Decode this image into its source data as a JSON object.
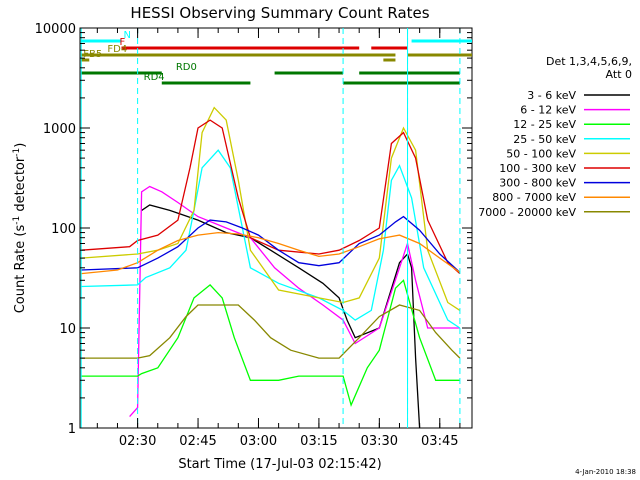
{
  "chart_data": {
    "type": "line",
    "title": "HESSI Observing Summary Count Rates",
    "xlabel": "Start Time (17-Jul-03 02:15:42)",
    "ylabel": "Count Rate (s",
    "ylabel_exp": "-1",
    "ylabel_tail": " detector",
    "ylabel_exp2": "-1",
    "ylabel_close": ")",
    "yscale": "log",
    "ylim": [
      1,
      10000
    ],
    "xlim": [
      "02:15:42",
      "03:53:00"
    ],
    "y_ticks": [
      1,
      10,
      100,
      1000,
      10000
    ],
    "y_tick_labels": [
      "1",
      "10",
      "100",
      "1000",
      "10000"
    ],
    "x_ticks": [
      "02:30",
      "02:45",
      "03:00",
      "03:15",
      "03:30",
      "03:45"
    ],
    "grid": false,
    "legend": {
      "position": "right",
      "header": "Det 1,3,4,5,6,9,",
      "header2": "Att 0"
    },
    "series": [
      {
        "name": "3 - 6 keV",
        "color": "#000000",
        "x": [
          "02:16",
          "02:29",
          "02:31",
          "02:33",
          "02:38",
          "02:45",
          "02:52",
          "02:58",
          "03:03",
          "03:10",
          "03:16",
          "03:20",
          "03:22",
          "03:24",
          "03:30",
          "03:35",
          "03:37",
          "03:38",
          "03:39",
          "03:40"
        ],
        "y": [
          null,
          null,
          150,
          170,
          150,
          120,
          90,
          80,
          60,
          40,
          28,
          20,
          12,
          8,
          10,
          45,
          55,
          40,
          5,
          1
        ]
      },
      {
        "name": "6 - 12 keV",
        "color": "#ff00ff",
        "x": [
          "02:16",
          "02:28",
          "02:30",
          "02:31",
          "02:33",
          "02:36",
          "02:40",
          "02:45",
          "02:52",
          "02:58",
          "03:04",
          "03:10",
          "03:16",
          "03:21",
          "03:24",
          "03:30",
          "03:35",
          "03:37",
          "03:39",
          "03:42",
          "03:50"
        ],
        "y": [
          null,
          1.3,
          1.6,
          230,
          260,
          230,
          180,
          130,
          100,
          80,
          40,
          25,
          17,
          12,
          7,
          10,
          40,
          70,
          30,
          10,
          10
        ]
      },
      {
        "name": "12 - 25 keV",
        "color": "#00ff00",
        "x": [
          "02:16",
          "02:30",
          "02:31",
          "02:35",
          "02:40",
          "02:44",
          "02:48",
          "02:51",
          "02:54",
          "02:58",
          "03:05",
          "03:10",
          "03:16",
          "03:21",
          "03:23",
          "03:27",
          "03:30",
          "03:34",
          "03:36",
          "03:40",
          "03:44",
          "03:50"
        ],
        "y": [
          3.3,
          3.3,
          3.5,
          4,
          8,
          20,
          27,
          20,
          8,
          3,
          3,
          3.3,
          3.3,
          3.3,
          1.7,
          4,
          6,
          25,
          30,
          8,
          3,
          3
        ]
      },
      {
        "name": "25 - 50 keV",
        "color": "#00ffff",
        "x": [
          "02:16",
          "02:30",
          "02:32",
          "02:38",
          "02:42",
          "02:44",
          "02:46",
          "02:50",
          "02:53",
          "02:56",
          "02:58",
          "03:05",
          "03:15",
          "03:21",
          "03:24",
          "03:28",
          "03:31",
          "03:33",
          "03:35",
          "03:38",
          "03:41",
          "03:47",
          "03:50"
        ],
        "y": [
          26,
          27,
          32,
          40,
          60,
          150,
          400,
          600,
          400,
          100,
          40,
          28,
          20,
          15,
          12,
          15,
          60,
          300,
          420,
          200,
          40,
          12,
          10
        ]
      },
      {
        "name": "50 - 100 keV",
        "color": "#cccc00",
        "x": [
          "02:16",
          "02:30",
          "02:35",
          "02:40",
          "02:44",
          "02:46",
          "02:49",
          "02:52",
          "02:55",
          "02:58",
          "03:05",
          "03:15",
          "03:21",
          "03:25",
          "03:30",
          "03:33",
          "03:36",
          "03:39",
          "03:42",
          "03:47",
          "03:50"
        ],
        "y": [
          50,
          55,
          60,
          70,
          150,
          900,
          1600,
          1200,
          300,
          60,
          24,
          20,
          18,
          20,
          50,
          500,
          1000,
          600,
          60,
          18,
          15
        ]
      },
      {
        "name": "100 - 300 keV",
        "color": "#dd0000",
        "x": [
          "02:16",
          "02:28",
          "02:30",
          "02:35",
          "02:40",
          "02:43",
          "02:45",
          "02:48",
          "02:51",
          "02:55",
          "02:58",
          "03:05",
          "03:15",
          "03:20",
          "03:25",
          "03:30",
          "03:33",
          "03:36",
          "03:39",
          "03:42",
          "03:47",
          "03:50"
        ],
        "y": [
          60,
          65,
          75,
          85,
          120,
          400,
          1000,
          1200,
          1000,
          200,
          80,
          60,
          55,
          60,
          75,
          100,
          700,
          900,
          500,
          120,
          45,
          35
        ]
      },
      {
        "name": "300 - 800 keV",
        "color": "#0000dd",
        "x": [
          "02:16",
          "02:30",
          "02:35",
          "02:40",
          "02:45",
          "02:48",
          "02:52",
          "02:56",
          "03:00",
          "03:05",
          "03:10",
          "03:15",
          "03:20",
          "03:25",
          "03:30",
          "03:34",
          "03:36",
          "03:40",
          "03:45",
          "03:50"
        ],
        "y": [
          38,
          40,
          50,
          65,
          100,
          120,
          115,
          100,
          85,
          60,
          45,
          42,
          45,
          70,
          85,
          115,
          130,
          95,
          55,
          36
        ]
      },
      {
        "name": "800 - 7000 keV",
        "color": "#ff8800",
        "x": [
          "02:16",
          "02:25",
          "02:30",
          "02:35",
          "02:40",
          "02:45",
          "02:50",
          "02:55",
          "03:00",
          "03:05",
          "03:10",
          "03:15",
          "03:20",
          "03:25",
          "03:30",
          "03:35",
          "03:40",
          "03:45",
          "03:50"
        ],
        "y": [
          35,
          38,
          45,
          60,
          75,
          85,
          90,
          87,
          80,
          70,
          60,
          52,
          55,
          65,
          78,
          85,
          70,
          50,
          36
        ]
      },
      {
        "name": "7000 - 20000 keV",
        "color": "#888800",
        "x": [
          "02:16",
          "02:25",
          "02:30",
          "02:33",
          "02:38",
          "02:42",
          "02:45",
          "02:50",
          "02:55",
          "02:59",
          "03:03",
          "03:08",
          "03:15",
          "03:20",
          "03:25",
          "03:30",
          "03:35",
          "03:40",
          "03:44",
          "03:48",
          "03:50"
        ],
        "y": [
          5,
          5,
          5,
          5.3,
          8,
          13,
          17,
          17,
          17,
          12,
          8,
          6,
          5,
          5,
          8,
          13,
          17,
          15,
          9,
          6,
          5
        ]
      }
    ],
    "state_bars": [
      {
        "label": "N",
        "color": "#00ffff",
        "label_at": "02:26",
        "segments": [
          [
            "02:16",
            "02:26"
          ],
          [
            "03:38",
            "03:53"
          ]
        ]
      },
      {
        "label": "F",
        "color": "#dd0000",
        "label_at": "02:25",
        "segments": [
          [
            "02:26",
            "03:25"
          ],
          [
            "03:28",
            "03:37"
          ]
        ]
      },
      {
        "label": "FD4",
        "color": "#888800",
        "label_at": "02:22",
        "segments": [
          [
            "02:16",
            "02:27"
          ],
          [
            "02:27",
            "03:34"
          ],
          [
            "03:37",
            "03:53"
          ]
        ]
      },
      {
        "label": "FB5",
        "color": "#888800",
        "label_at": "02:16",
        "segments": [
          [
            "02:16",
            "02:18"
          ],
          [
            "03:31",
            "03:34"
          ]
        ]
      },
      {
        "label": "RD0",
        "color": "#007700",
        "label_at": "02:39",
        "segments": [
          [
            "02:16",
            "02:36"
          ],
          [
            "03:04",
            "03:21"
          ],
          [
            "03:25",
            "03:50"
          ]
        ]
      },
      {
        "label": "RD4",
        "color": "#007700",
        "label_at": "02:31",
        "segments": [
          [
            "02:36",
            "02:58"
          ],
          [
            "03:21",
            "03:50"
          ]
        ]
      }
    ],
    "vertical_lines": {
      "solid": [
        "02:16",
        "03:37"
      ],
      "dashed": [
        "02:30",
        "03:21",
        "03:37",
        "03:50"
      ],
      "color": "#00ffff"
    },
    "footer_date": "4-Jan-2010 18:38"
  }
}
